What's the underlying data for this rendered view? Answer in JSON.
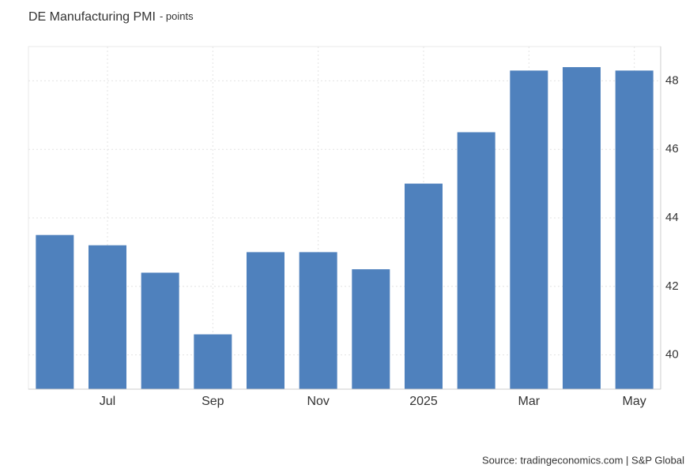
{
  "chart_data": {
    "type": "bar",
    "title": "DE Manufacturing PMI",
    "subtitle": "- points",
    "categories": [
      null,
      "Jul",
      null,
      "Sep",
      null,
      "Nov",
      null,
      "2025",
      null,
      "Mar",
      null,
      "May"
    ],
    "values": [
      43.5,
      43.2,
      42.4,
      40.6,
      43.0,
      43.0,
      42.5,
      45.0,
      46.5,
      48.3,
      48.4,
      48.3
    ],
    "color": "#4f81bd",
    "ylim": [
      39,
      49
    ],
    "yticks": [
      40,
      42,
      44,
      46,
      48
    ],
    "grid": true,
    "source": "Source: tradingeconomics.com | S&P Global"
  }
}
